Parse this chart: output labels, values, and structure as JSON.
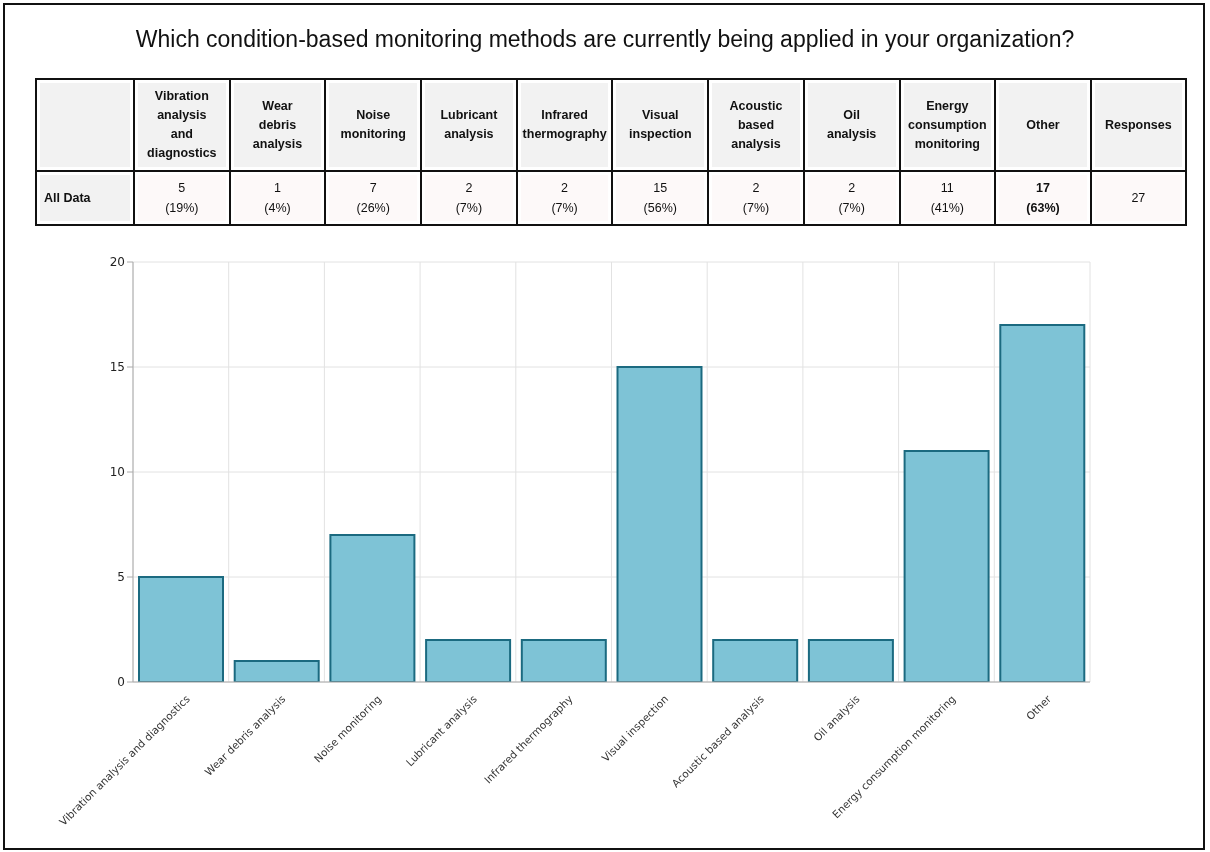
{
  "chart_data": {
    "type": "bar",
    "title": "Which condition-based monitoring methods are currently being applied in your organization?",
    "categories": [
      "Vibration analysis and diagnostics",
      "Wear debris analysis",
      "Noise monitoring",
      "Lubricant analysis",
      "Infrared thermography",
      "Visual inspection",
      "Acoustic based analysis",
      "Oil analysis",
      "Energy consumption monitoring",
      "Other"
    ],
    "series": [
      {
        "name": "All Data",
        "color": "#7ec3d6",
        "values": [
          5,
          1,
          7,
          2,
          2,
          15,
          2,
          2,
          11,
          17
        ],
        "value_labels": [
          "5 (19%)",
          "1 (4%)",
          "7 (26%)",
          "2 (7%)",
          "2 (7%)",
          "15 (56%)",
          "2 (7%)",
          "2 (7%)",
          "11 (41%)",
          "17 (63%)"
        ]
      }
    ],
    "ylim": [
      0,
      20
    ],
    "yticks": [
      0,
      5,
      10,
      15,
      20
    ],
    "grid": true,
    "annotations": [
      "Responses",
      "27"
    ]
  }
}
